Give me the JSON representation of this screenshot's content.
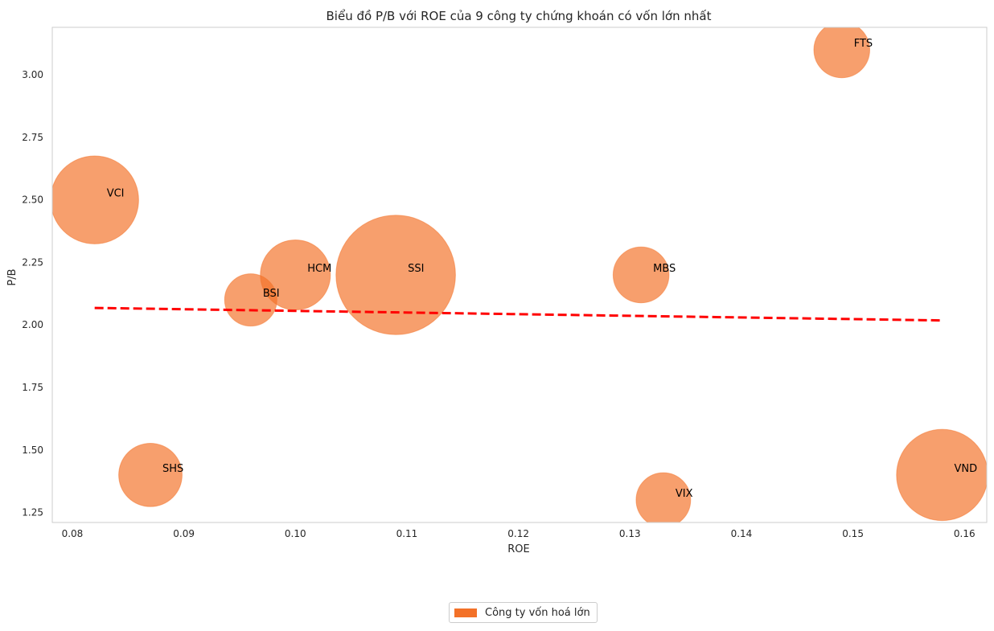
{
  "chart_data": {
    "type": "scatter",
    "title": "Biểu đồ P/B với ROE của 9 công ty chứng khoán có vốn lớn nhất",
    "xlabel": "ROE",
    "ylabel": "P/B",
    "xlim": [
      0.0782,
      0.162
    ],
    "ylim": [
      1.21,
      3.19
    ],
    "xticks": [
      "0.08",
      "0.09",
      "0.10",
      "0.11",
      "0.12",
      "0.13",
      "0.14",
      "0.15",
      "0.16"
    ],
    "yticks": [
      "1.25",
      "1.50",
      "1.75",
      "2.00",
      "2.25",
      "2.50",
      "2.75",
      "3.00"
    ],
    "grid": false,
    "legend_position": "bottom-center",
    "series": [
      {
        "name": "Công ty vốn hoá lớn",
        "color": "#f37128",
        "points": [
          {
            "label": "VCI",
            "x": 0.082,
            "y": 2.5,
            "size": 2.6
          },
          {
            "label": "FTS",
            "x": 0.149,
            "y": 3.1,
            "size": 1.05
          },
          {
            "label": "BSI",
            "x": 0.096,
            "y": 2.1,
            "size": 0.92
          },
          {
            "label": "HCM",
            "x": 0.1,
            "y": 2.2,
            "size": 1.65
          },
          {
            "label": "SSI",
            "x": 0.109,
            "y": 2.2,
            "size": 4.8
          },
          {
            "label": "MBS",
            "x": 0.131,
            "y": 2.2,
            "size": 1.05
          },
          {
            "label": "SHS",
            "x": 0.087,
            "y": 1.4,
            "size": 1.35
          },
          {
            "label": "VIX",
            "x": 0.133,
            "y": 1.3,
            "size": 1.0
          },
          {
            "label": "VND",
            "x": 0.158,
            "y": 1.4,
            "size": 2.8
          }
        ]
      }
    ],
    "trendline": {
      "style": "dashed",
      "color": "#ff0000",
      "x": [
        0.082,
        0.158
      ],
      "y": [
        2.068,
        2.018
      ]
    }
  }
}
